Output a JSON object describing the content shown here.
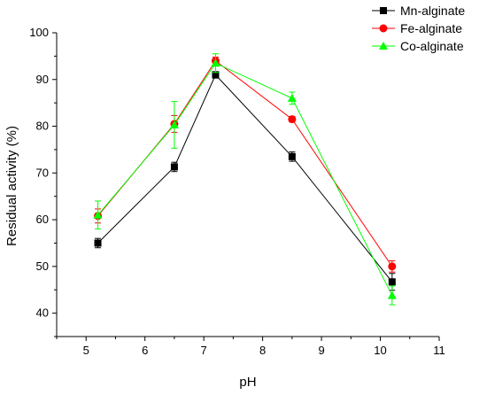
{
  "chart_data": {
    "type": "line",
    "xlabel": "pH",
    "ylabel": "Residual activity (%)",
    "xlim": [
      4.5,
      11
    ],
    "ylim": [
      35,
      100
    ],
    "xticks": [
      5,
      6,
      7,
      8,
      9,
      10,
      11
    ],
    "yticks": [
      40,
      50,
      60,
      70,
      80,
      90,
      100
    ],
    "grid": false,
    "legend": "top-right",
    "series": [
      {
        "name": "Mn-alginate",
        "color": "#000000",
        "marker": "square",
        "x": [
          5.2,
          6.5,
          7.2,
          8.5,
          10.2
        ],
        "y": [
          55.0,
          71.3,
          91.0,
          73.5,
          46.7
        ],
        "err": [
          1.0,
          1.0,
          0.7,
          1.0,
          1.8
        ]
      },
      {
        "name": "Fe-alginate",
        "color": "#ff0000",
        "marker": "circle",
        "x": [
          5.2,
          6.5,
          7.2,
          8.5,
          10.2
        ],
        "y": [
          60.8,
          80.5,
          94.0,
          81.5,
          50.0
        ],
        "err": [
          1.5,
          1.8,
          0.8,
          0.6,
          1.2
        ]
      },
      {
        "name": "Co-alginate",
        "color": "#00ff00",
        "marker": "triangle",
        "x": [
          5.2,
          6.5,
          7.2,
          8.5,
          10.2
        ],
        "y": [
          61.0,
          80.3,
          93.5,
          86.0,
          43.8
        ],
        "err": [
          3.0,
          5.0,
          2.0,
          1.3,
          2.0
        ]
      }
    ]
  }
}
